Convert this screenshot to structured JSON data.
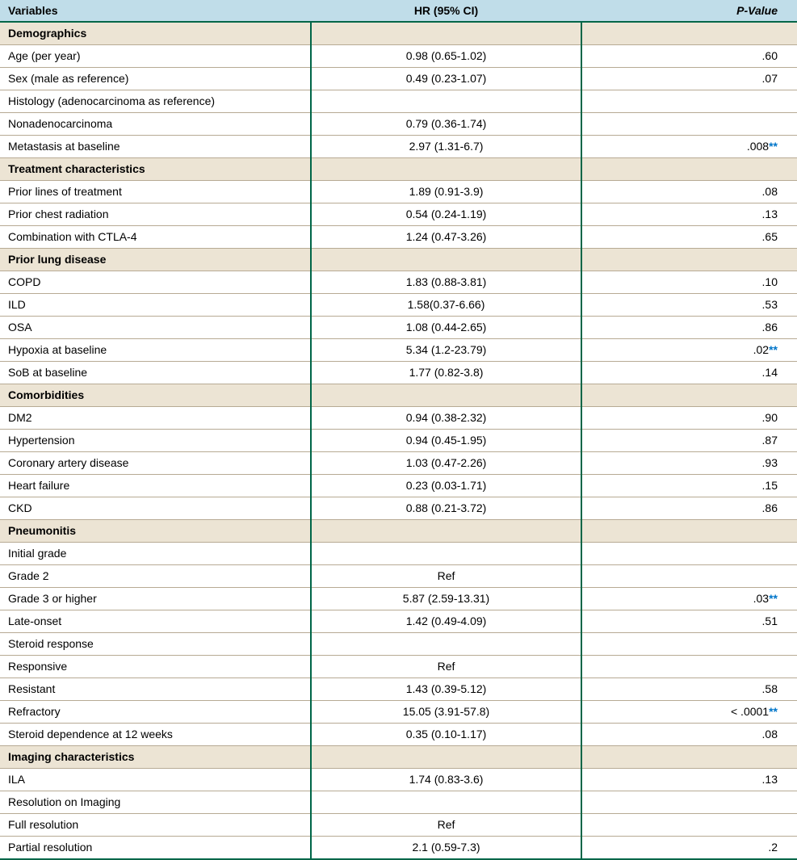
{
  "colors": {
    "header_bg": "#c0dde9",
    "section_bg": "#ece4d4",
    "border_green": "#006648",
    "row_line": "#b7aa94",
    "star": "#0075c9"
  },
  "headers": {
    "variables": "Variables",
    "hr": "HR (95% CI)",
    "pvalue_prefix": "P",
    "pvalue_suffix": "-Value"
  },
  "rows": [
    {
      "type": "section",
      "label": "Demographics"
    },
    {
      "type": "row",
      "indent": 1,
      "label": "Age (per year)",
      "hr": "0.98 (0.65-1.02)",
      "p": ".60"
    },
    {
      "type": "row",
      "indent": 1,
      "label": "Sex (male as reference)",
      "hr": "0.49 (0.23-1.07)",
      "p": ".07"
    },
    {
      "type": "row",
      "indent": 0,
      "label": "Histology (adenocarcinoma as reference)",
      "hr": "",
      "p": ""
    },
    {
      "type": "row",
      "indent": 2,
      "label": "Nonadenocarcinoma",
      "hr": "0.79 (0.36-1.74)",
      "p": ""
    },
    {
      "type": "row",
      "indent": 1,
      "label": "Metastasis at baseline",
      "hr": "2.97 (1.31-6.7)",
      "p": ".008",
      "sig": true
    },
    {
      "type": "section",
      "label": "Treatment characteristics"
    },
    {
      "type": "row",
      "indent": 1,
      "label": "Prior lines of treatment",
      "hr": "1.89 (0.91-3.9)",
      "p": ".08"
    },
    {
      "type": "row",
      "indent": 1,
      "label": "Prior chest radiation",
      "hr": "0.54 (0.24-1.19)",
      "p": ".13"
    },
    {
      "type": "row",
      "indent": 1,
      "label": "Combination with CTLA-4",
      "hr": "1.24 (0.47-3.26)",
      "p": ".65"
    },
    {
      "type": "section",
      "label": "Prior lung disease"
    },
    {
      "type": "row",
      "indent": 1,
      "label": "COPD",
      "hr": "1.83 (0.88-3.81)",
      "p": ".10"
    },
    {
      "type": "row",
      "indent": 1,
      "label": "ILD",
      "hr": "1.58(0.37-6.66)",
      "p": ".53"
    },
    {
      "type": "row",
      "indent": 1,
      "label": "OSA",
      "hr": "1.08 (0.44-2.65)",
      "p": ".86"
    },
    {
      "type": "row",
      "indent": 1,
      "label": "Hypoxia at baseline",
      "hr": "5.34 (1.2-23.79)",
      "p": ".02",
      "sig": true
    },
    {
      "type": "row",
      "indent": 1,
      "label": "SoB at baseline",
      "hr": "1.77 (0.82-3.8)",
      "p": ".14"
    },
    {
      "type": "section",
      "label": "Comorbidities"
    },
    {
      "type": "row",
      "indent": 1,
      "label": "DM2",
      "hr": "0.94 (0.38-2.32)",
      "p": ".90"
    },
    {
      "type": "row",
      "indent": 1,
      "label": "Hypertension",
      "hr": "0.94 (0.45-1.95)",
      "p": ".87"
    },
    {
      "type": "row",
      "indent": 1,
      "label": "Coronary artery disease",
      "hr": "1.03 (0.47-2.26)",
      "p": ".93"
    },
    {
      "type": "row",
      "indent": 1,
      "label": "Heart failure",
      "hr": "0.23 (0.03-1.71)",
      "p": ".15"
    },
    {
      "type": "row",
      "indent": 1,
      "label": "CKD",
      "hr": "0.88 (0.21-3.72)",
      "p": ".86"
    },
    {
      "type": "section",
      "label": "Pneumonitis"
    },
    {
      "type": "row",
      "indent": 1,
      "label": "Initial grade",
      "hr": "",
      "p": ""
    },
    {
      "type": "row",
      "indent": 2,
      "label": "Grade 2",
      "hr": "Ref",
      "p": ""
    },
    {
      "type": "row",
      "indent": 2,
      "label": "Grade 3 or higher",
      "hr": "5.87 (2.59-13.31)",
      "p": ".03",
      "sig": true
    },
    {
      "type": "row",
      "indent": 1,
      "label": "Late-onset",
      "hr": "1.42 (0.49-4.09)",
      "p": ".51"
    },
    {
      "type": "row",
      "indent": 1,
      "label": "Steroid response",
      "hr": "",
      "p": ""
    },
    {
      "type": "row",
      "indent": 2,
      "label": "Responsive",
      "hr": "Ref",
      "p": ""
    },
    {
      "type": "row",
      "indent": 2,
      "label": "Resistant",
      "hr": "1.43 (0.39-5.12)",
      "p": ".58"
    },
    {
      "type": "row",
      "indent": 2,
      "label": "Refractory",
      "hr": "15.05 (3.91-57.8)",
      "p": "< .0001",
      "sig": true
    },
    {
      "type": "row",
      "indent": 1,
      "label": "Steroid dependence at 12 weeks",
      "hr": "0.35 (0.10-1.17)",
      "p": ".08"
    },
    {
      "type": "section",
      "label": "Imaging characteristics"
    },
    {
      "type": "row",
      "indent": 1,
      "label": "ILA",
      "hr": "1.74 (0.83-3.6)",
      "p": ".13"
    },
    {
      "type": "row",
      "indent": 1,
      "label": "Resolution on Imaging",
      "hr": "",
      "p": ""
    },
    {
      "type": "row",
      "indent": 2,
      "label": "Full resolution",
      "hr": "Ref",
      "p": ""
    },
    {
      "type": "row",
      "indent": 2,
      "label": "Partial resolution",
      "hr": "2.1 (0.59-7.3)",
      "p": ".2"
    }
  ]
}
